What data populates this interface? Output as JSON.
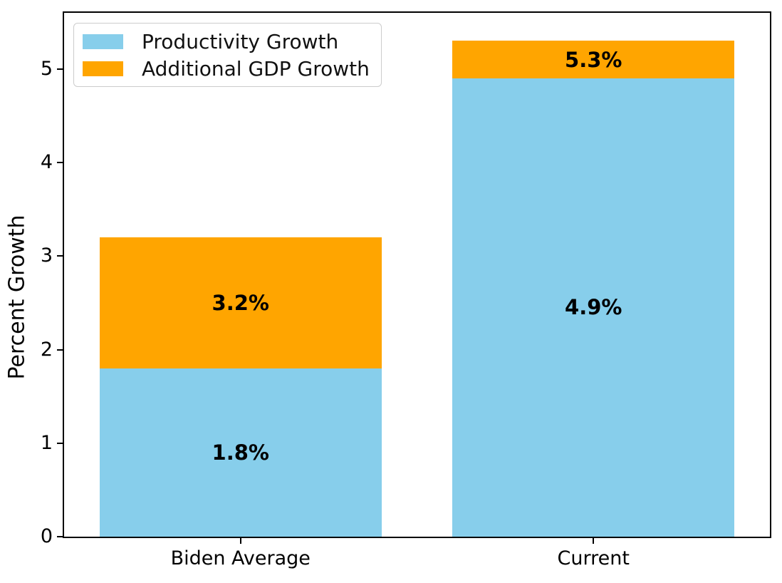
{
  "chart_data": {
    "type": "bar",
    "stacked": true,
    "title": "",
    "xlabel": "",
    "ylabel": "Percent Growth",
    "categories": [
      "Biden Average",
      "Current"
    ],
    "series": [
      {
        "name": "Productivity Growth",
        "color": "#87CEEB",
        "values": [
          1.8,
          4.9
        ],
        "segment_labels": [
          "1.8%",
          "4.9%"
        ]
      },
      {
        "name": "Additional GDP Growth",
        "color": "#FFA500",
        "values": [
          1.4,
          0.4
        ],
        "segment_labels": [
          "3.2%",
          "5.3%"
        ]
      }
    ],
    "stack_totals": [
      3.2,
      5.3
    ],
    "yticks": [
      0,
      1,
      2,
      3,
      4,
      5
    ],
    "ylim": [
      0,
      5.6
    ],
    "bar_width": 0.8,
    "grid": false,
    "legend_position": "upper left",
    "spine_color": "#000000",
    "background_color": "#ffffff"
  }
}
